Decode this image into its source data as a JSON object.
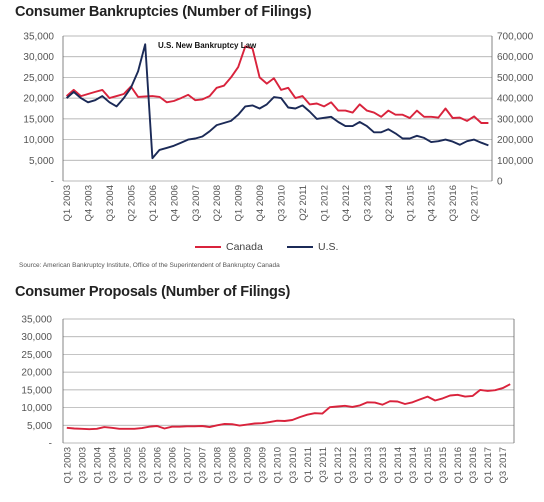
{
  "colors": {
    "canada": "#d9233c",
    "us": "#1b2a57",
    "grid": "#a0a0a0",
    "axis": "#666666"
  },
  "charts": {
    "bankruptcies": {
      "title": "Consumer Bankruptcies (Number of Filings)"
    },
    "proposals": {
      "title": "Consumer Proposals (Number of Filings)"
    }
  },
  "legend": {
    "canada": "Canada",
    "us": "U.S."
  },
  "annotation": "U.S. New Bankruptcy Law",
  "source": "Source: American Bankruptcy Institute, Office of the Superintendent of Bankruptcy Canada",
  "chart_data": [
    {
      "type": "line",
      "title": "Consumer Bankruptcies (Number of Filings)",
      "x": [
        "Q1 2003",
        "Q2 2003",
        "Q3 2003",
        "Q4 2003",
        "Q1 2004",
        "Q2 2004",
        "Q3 2004",
        "Q4 2004",
        "Q1 2005",
        "Q2 2005",
        "Q3 2005",
        "Q4 2005",
        "Q1 2006",
        "Q2 2006",
        "Q3 2006",
        "Q4 2006",
        "Q1 2007",
        "Q2 2007",
        "Q3 2007",
        "Q4 2007",
        "Q1 2008",
        "Q2 2008",
        "Q3 2008",
        "Q4 2008",
        "Q1 2009",
        "Q2 2009",
        "Q3 2009",
        "Q4 2009",
        "Q1 2010",
        "Q2 2010",
        "Q3 2010",
        "Q4 2010",
        "Q1 2011",
        "Q2 2011",
        "Q3 2011",
        "Q4 2011",
        "Q1 2012",
        "Q2 2012",
        "Q3 2012",
        "Q4 2012",
        "Q1 2013",
        "Q2 2013",
        "Q3 2013",
        "Q4 2013",
        "Q1 2014",
        "Q2 2014",
        "Q3 2014",
        "Q4 2014",
        "Q1 2015",
        "Q2 2015",
        "Q3 2015",
        "Q4 2015",
        "Q1 2016",
        "Q2 2016",
        "Q3 2016",
        "Q4 2016",
        "Q1 2017",
        "Q2 2017",
        "Q3 2017",
        "Q4 2017"
      ],
      "tick_labels": [
        "Q1 2003",
        "Q4 2003",
        "Q3 2004",
        "Q2 2005",
        "Q1 2006",
        "Q4 2006",
        "Q3 2007",
        "Q2 2008",
        "Q1 2009",
        "Q4 2009",
        "Q3 2010",
        "Q2 2011",
        "Q1 2012",
        "Q4 2012",
        "Q3 2013",
        "Q2 2014",
        "Q1 2015",
        "Q4 2015",
        "Q3 2016",
        "Q2 2017"
      ],
      "y_left": {
        "ylim": [
          0,
          35000
        ],
        "ticks": [
          "-",
          "5,000",
          "10,000",
          "15,000",
          "20,000",
          "25,000",
          "30,000",
          "35,000"
        ]
      },
      "y_right": {
        "ylim": [
          0,
          700000
        ],
        "ticks": [
          "0",
          "100,000",
          "200,000",
          "300,000",
          "400,000",
          "500,000",
          "600,000",
          "700,000"
        ]
      },
      "series": [
        {
          "name": "Canada",
          "axis": "left",
          "values": [
            20500,
            22000,
            20500,
            21000,
            21500,
            22000,
            20000,
            20500,
            21000,
            22800,
            20300,
            20400,
            20500,
            20300,
            19000,
            19300,
            20000,
            20800,
            19500,
            19700,
            20500,
            22500,
            23000,
            25000,
            27500,
            32500,
            32000,
            25000,
            23500,
            24800,
            22000,
            22500,
            20000,
            20500,
            18500,
            18700,
            18000,
            19000,
            17000,
            17000,
            16500,
            18500,
            17000,
            16500,
            15500,
            17000,
            16000,
            16000,
            15200,
            17000,
            15500,
            15500,
            15300,
            17500,
            15200,
            15300,
            14500,
            15600,
            14000,
            14000
          ]
        },
        {
          "name": "U.S.",
          "axis": "right",
          "values": [
            400000,
            430000,
            400000,
            380000,
            390000,
            410000,
            380000,
            360000,
            400000,
            450000,
            530000,
            660000,
            110000,
            150000,
            160000,
            170000,
            185000,
            200000,
            205000,
            215000,
            240000,
            270000,
            280000,
            290000,
            320000,
            360000,
            365000,
            350000,
            370000,
            405000,
            400000,
            355000,
            350000,
            365000,
            335000,
            300000,
            305000,
            310000,
            285000,
            265000,
            265000,
            285000,
            265000,
            235000,
            235000,
            250000,
            230000,
            205000,
            205000,
            218000,
            208000,
            188000,
            192000,
            200000,
            190000,
            175000,
            192000,
            200000,
            185000,
            172000
          ]
        }
      ]
    },
    {
      "type": "line",
      "title": "Consumer Proposals (Number of Filings)",
      "x": [
        "Q1 2003",
        "Q2 2003",
        "Q3 2003",
        "Q4 2003",
        "Q1 2004",
        "Q2 2004",
        "Q3 2004",
        "Q4 2004",
        "Q1 2005",
        "Q2 2005",
        "Q3 2005",
        "Q4 2005",
        "Q1 2006",
        "Q2 2006",
        "Q3 2006",
        "Q4 2006",
        "Q1 2007",
        "Q2 2007",
        "Q3 2007",
        "Q4 2007",
        "Q1 2008",
        "Q2 2008",
        "Q3 2008",
        "Q4 2008",
        "Q1 2009",
        "Q2 2009",
        "Q3 2009",
        "Q4 2009",
        "Q1 2010",
        "Q2 2010",
        "Q3 2010",
        "Q4 2010",
        "Q1 2011",
        "Q2 2011",
        "Q3 2011",
        "Q4 2011",
        "Q1 2012",
        "Q2 2012",
        "Q3 2012",
        "Q4 2012",
        "Q1 2013",
        "Q2 2013",
        "Q3 2013",
        "Q4 2013",
        "Q1 2014",
        "Q2 2014",
        "Q3 2014",
        "Q4 2014",
        "Q1 2015",
        "Q2 2015",
        "Q3 2015",
        "Q4 2015",
        "Q1 2016",
        "Q2 2016",
        "Q3 2016",
        "Q4 2016",
        "Q1 2017",
        "Q2 2017",
        "Q3 2017",
        "Q4 2017"
      ],
      "tick_labels": [
        "Q1 2003",
        "Q3 2003",
        "Q1 2004",
        "Q3 2004",
        "Q1 2005",
        "Q3 2005",
        "Q1 2006",
        "Q3 2006",
        "Q1 2007",
        "Q3 2007",
        "Q1 2008",
        "Q3 2008",
        "Q1 2009",
        "Q3 2009",
        "Q1 2010",
        "Q3 2010",
        "Q1 2011",
        "Q3 2011",
        "Q1 2012",
        "Q3 2012",
        "Q1 2013",
        "Q3 2013",
        "Q1 2014",
        "Q3 2014",
        "Q1 2015",
        "Q3 2015",
        "Q1 2016",
        "Q3 2016",
        "Q1 2017",
        "Q3 2017"
      ],
      "y": {
        "ylim": [
          0,
          35000
        ],
        "ticks": [
          "-",
          "5,000",
          "10,000",
          "15,000",
          "20,000",
          "25,000",
          "30,000",
          "35,000"
        ]
      },
      "series": [
        {
          "name": "Canada",
          "values": [
            4300,
            4100,
            4000,
            3900,
            4000,
            4500,
            4300,
            4000,
            4000,
            4000,
            4200,
            4600,
            4800,
            4100,
            4600,
            4600,
            4700,
            4700,
            4800,
            4500,
            5000,
            5400,
            5300,
            4900,
            5200,
            5500,
            5600,
            5900,
            6300,
            6200,
            6500,
            7300,
            8000,
            8400,
            8300,
            10100,
            10300,
            10500,
            10200,
            10600,
            11500,
            11400,
            10800,
            11800,
            11700,
            11000,
            11500,
            12300,
            13100,
            12000,
            12600,
            13400,
            13600,
            13100,
            13300,
            15000,
            14700,
            14900,
            15500,
            16600
          ]
        }
      ]
    }
  ]
}
